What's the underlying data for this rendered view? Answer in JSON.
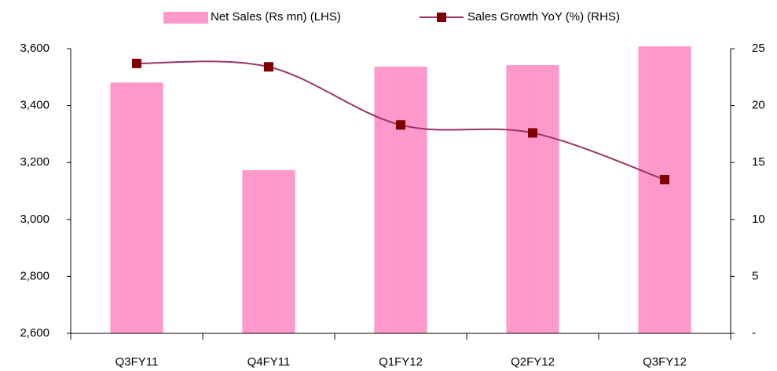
{
  "chart_data": {
    "type": "bar",
    "categories": [
      "Q3FY11",
      "Q4FY11",
      "Q1FY12",
      "Q2FY12",
      "Q3FY12"
    ],
    "series": [
      {
        "name": "Net Sales (Rs mn) (LHS)",
        "type": "bar",
        "color": "#ff99cc",
        "values": [
          3481,
          3173,
          3537,
          3542,
          3608
        ]
      },
      {
        "name": "Sales Growth YoY (%) (RHS)",
        "type": "line",
        "axis": "y2",
        "color": "#993366",
        "marker_color": "#800000",
        "values": [
          23.7,
          23.4,
          18.3,
          17.6,
          13.5
        ]
      }
    ],
    "ylim": [
      2600,
      3600
    ],
    "yticks": [
      {
        "value": 2600,
        "label": "2,600"
      },
      {
        "value": 2800,
        "label": "2,800"
      },
      {
        "value": 3000,
        "label": "3,000"
      },
      {
        "value": 3200,
        "label": "3,200"
      },
      {
        "value": 3400,
        "label": "3,400"
      },
      {
        "value": 3600,
        "label": "3,600"
      }
    ],
    "y2lim": [
      0,
      25
    ],
    "y2ticks": [
      {
        "value": 0,
        "label": "-"
      },
      5,
      10,
      15,
      20,
      25
    ],
    "legend": "top"
  }
}
